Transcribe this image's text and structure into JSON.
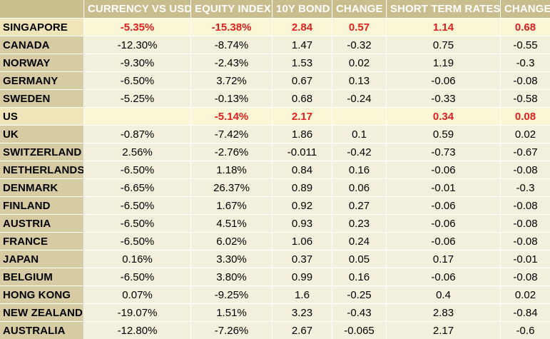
{
  "table": {
    "headers": [
      "",
      "CURRENCY VS USD",
      "EQUITY INDEX",
      "10Y BOND",
      "CHANGE",
      "SHORT TERM RATES",
      "CHANGE"
    ],
    "rows": [
      {
        "country": "SINGAPORE",
        "currency": "-5.35%",
        "equity": "-15.38%",
        "bond": "2.84",
        "change": "0.57",
        "short_rate": "1.14",
        "change2": "0.68",
        "highlight": true
      },
      {
        "country": "CANADA",
        "currency": "-12.30%",
        "equity": "-8.74%",
        "bond": "1.47",
        "change": "-0.32",
        "short_rate": "0.75",
        "change2": "-0.55",
        "highlight": false
      },
      {
        "country": "NORWAY",
        "currency": "-9.30%",
        "equity": "-2.43%",
        "bond": "1.53",
        "change": "0.02",
        "short_rate": "1.19",
        "change2": "-0.3",
        "highlight": false
      },
      {
        "country": "GERMANY",
        "currency": "-6.50%",
        "equity": "3.72%",
        "bond": "0.67",
        "change": "0.13",
        "short_rate": "-0.06",
        "change2": "-0.08",
        "highlight": false
      },
      {
        "country": "SWEDEN",
        "currency": "-5.25%",
        "equity": "-0.13%",
        "bond": "0.68",
        "change": "-0.24",
        "short_rate": "-0.33",
        "change2": "-0.58",
        "highlight": false
      },
      {
        "country": "US",
        "currency": "",
        "equity": "-5.14%",
        "bond": "2.17",
        "change": "",
        "short_rate": "0.34",
        "change2": "0.08",
        "highlight": true
      },
      {
        "country": "UK",
        "currency": "-0.87%",
        "equity": "-7.42%",
        "bond": "1.86",
        "change": "0.1",
        "short_rate": "0.59",
        "change2": "0.02",
        "highlight": false
      },
      {
        "country": "SWITZERLAND",
        "currency": "2.56%",
        "equity": "-2.76%",
        "bond": "-0.011",
        "change": "-0.42",
        "short_rate": "-0.73",
        "change2": "-0.67",
        "highlight": false
      },
      {
        "country": "NETHERLANDS",
        "currency": "-6.50%",
        "equity": "1.18%",
        "bond": "0.84",
        "change": "0.16",
        "short_rate": "-0.06",
        "change2": "-0.08",
        "highlight": false
      },
      {
        "country": "DENMARK",
        "currency": "-6.65%",
        "equity": "26.37%",
        "bond": "0.89",
        "change": "0.06",
        "short_rate": "-0.01",
        "change2": "-0.3",
        "highlight": false
      },
      {
        "country": "FINLAND",
        "currency": "-6.50%",
        "equity": "1.67%",
        "bond": "0.92",
        "change": "0.27",
        "short_rate": "-0.06",
        "change2": "-0.08",
        "highlight": false
      },
      {
        "country": "AUSTRIA",
        "currency": "-6.50%",
        "equity": "4.51%",
        "bond": "0.93",
        "change": "0.23",
        "short_rate": "-0.06",
        "change2": "-0.08",
        "highlight": false
      },
      {
        "country": "FRANCE",
        "currency": "-6.50%",
        "equity": "6.02%",
        "bond": "1.06",
        "change": "0.24",
        "short_rate": "-0.06",
        "change2": "-0.08",
        "highlight": false
      },
      {
        "country": "JAPAN",
        "currency": "0.16%",
        "equity": "3.30%",
        "bond": "0.37",
        "change": "0.05",
        "short_rate": "0.17",
        "change2": "-0.01",
        "highlight": false
      },
      {
        "country": "BELGIUM",
        "currency": "-6.50%",
        "equity": "3.80%",
        "bond": "0.99",
        "change": "0.16",
        "short_rate": "-0.06",
        "change2": "-0.08",
        "highlight": false
      },
      {
        "country": "HONG KONG",
        "currency": "0.07%",
        "equity": "-9.25%",
        "bond": "1.6",
        "change": "-0.25",
        "short_rate": "0.4",
        "change2": "0.02",
        "highlight": false
      },
      {
        "country": "NEW ZEALAND",
        "currency": "-19.07%",
        "equity": "1.51%",
        "bond": "3.23",
        "change": "-0.43",
        "short_rate": "2.83",
        "change2": "-0.84",
        "highlight": false
      },
      {
        "country": "AUSTRALIA",
        "currency": "-12.80%",
        "equity": "-7.26%",
        "bond": "2.67",
        "change": "-0.065",
        "short_rate": "2.17",
        "change2": "-0.6",
        "highlight": false
      }
    ]
  },
  "colors": {
    "header_bg": "#c9bc8d",
    "header_text": "#ffffff",
    "country_bg": "#d6cba3",
    "cell_bg": "#f2f0dd",
    "highlight_text": "#e01f1f"
  }
}
